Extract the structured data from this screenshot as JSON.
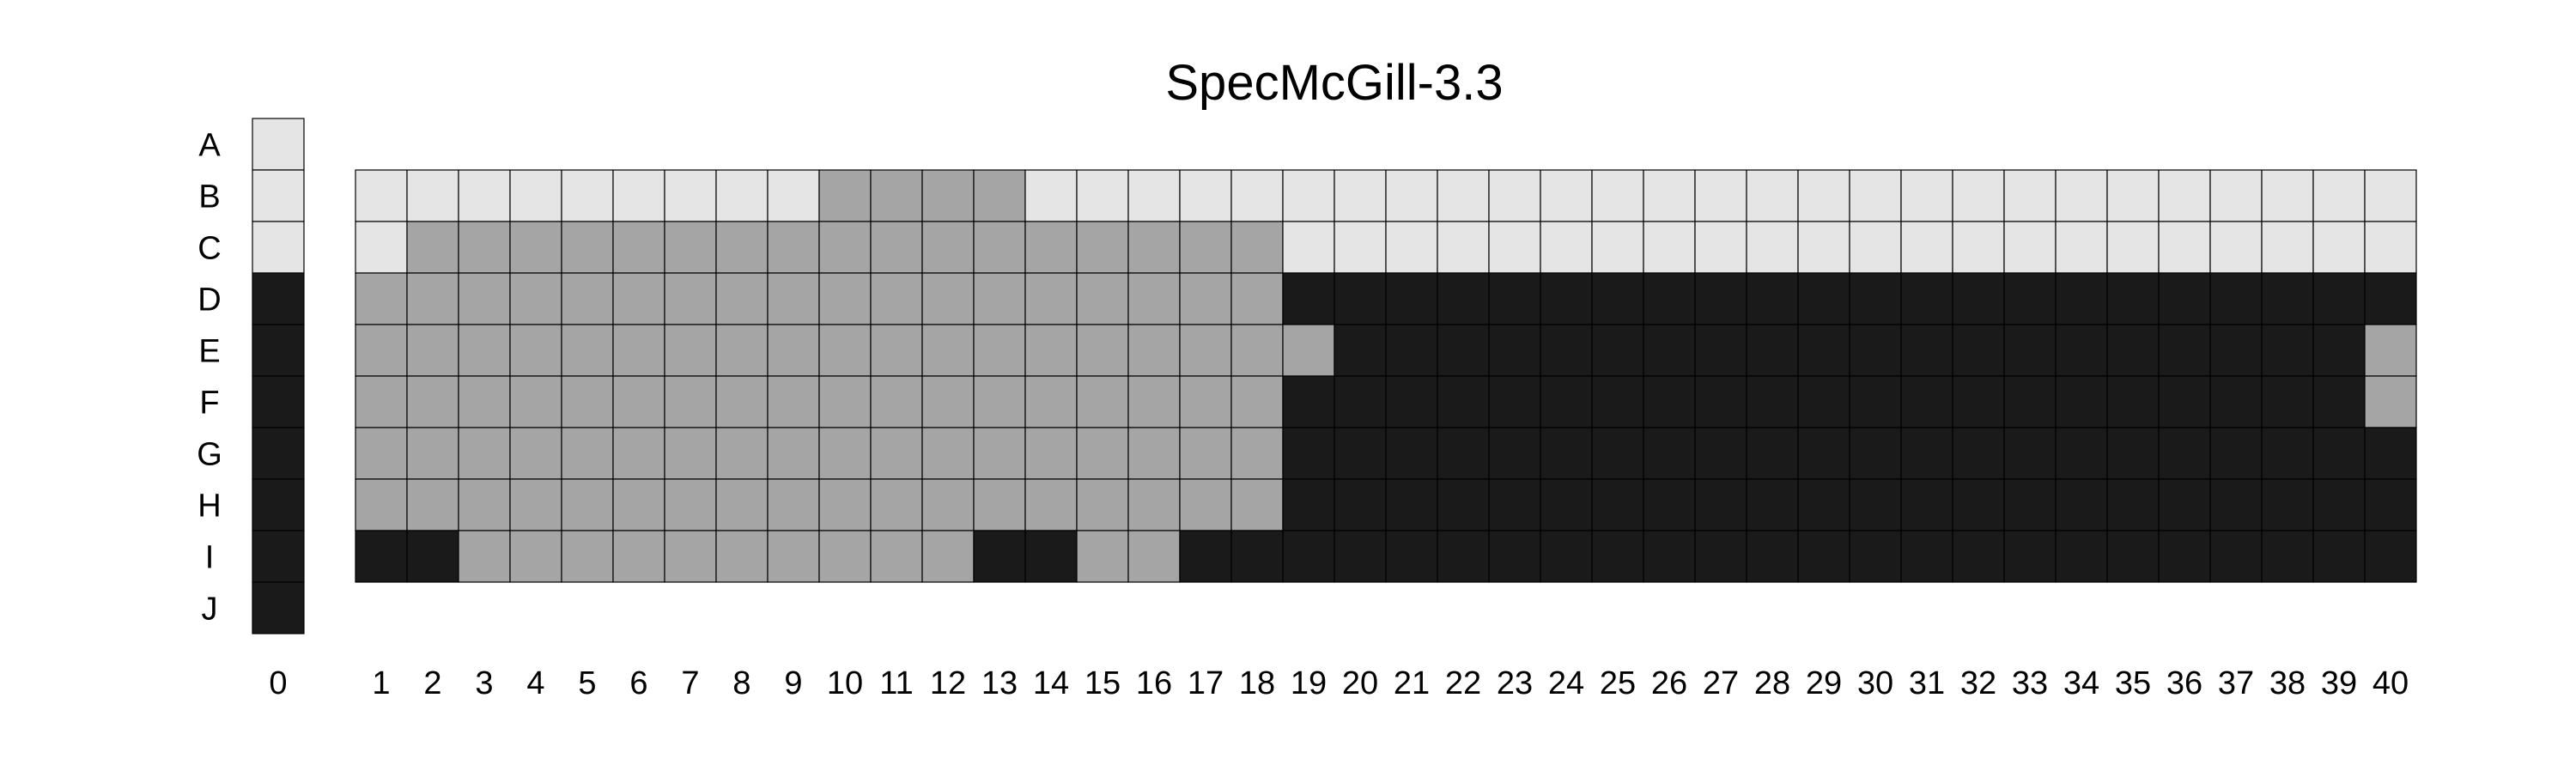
{
  "chart_data": {
    "type": "heatmap",
    "title": "SpecMcGill-3.3",
    "row_labels": [
      "A",
      "B",
      "C",
      "D",
      "E",
      "F",
      "G",
      "H",
      "I",
      "J"
    ],
    "column_zero_label": "0",
    "column_labels": [
      "1",
      "2",
      "3",
      "4",
      "5",
      "6",
      "7",
      "8",
      "9",
      "10",
      "11",
      "12",
      "13",
      "14",
      "15",
      "16",
      "17",
      "18",
      "19",
      "20",
      "21",
      "22",
      "23",
      "24",
      "25",
      "26",
      "27",
      "28",
      "29",
      "30",
      "31",
      "32",
      "33",
      "34",
      "35",
      "36",
      "37",
      "38",
      "39",
      "40"
    ],
    "level_colors": {
      "light": "#e5e5e5",
      "medium": "#a5a5a5",
      "dark": "#1a1a1a"
    },
    "column_zero_cells": [
      "light",
      "light",
      "light",
      "dark",
      "dark",
      "dark",
      "dark",
      "dark",
      "dark",
      "dark"
    ],
    "grid_row_labels": [
      "B",
      "C",
      "D",
      "E",
      "F",
      "G",
      "H",
      "I"
    ],
    "grid_cells": [
      [
        "light",
        "light",
        "light",
        "light",
        "light",
        "light",
        "light",
        "light",
        "light",
        "medium",
        "medium",
        "medium",
        "medium",
        "light",
        "light",
        "light",
        "light",
        "light",
        "light",
        "light",
        "light",
        "light",
        "light",
        "light",
        "light",
        "light",
        "light",
        "light",
        "light",
        "light",
        "light",
        "light",
        "light",
        "light",
        "light",
        "light",
        "light",
        "light",
        "light",
        "light"
      ],
      [
        "light",
        "medium",
        "medium",
        "medium",
        "medium",
        "medium",
        "medium",
        "medium",
        "medium",
        "medium",
        "medium",
        "medium",
        "medium",
        "medium",
        "medium",
        "medium",
        "medium",
        "medium",
        "light",
        "light",
        "light",
        "light",
        "light",
        "light",
        "light",
        "light",
        "light",
        "light",
        "light",
        "light",
        "light",
        "light",
        "light",
        "light",
        "light",
        "light",
        "light",
        "light",
        "light",
        "light"
      ],
      [
        "medium",
        "medium",
        "medium",
        "medium",
        "medium",
        "medium",
        "medium",
        "medium",
        "medium",
        "medium",
        "medium",
        "medium",
        "medium",
        "medium",
        "medium",
        "medium",
        "medium",
        "medium",
        "dark",
        "dark",
        "dark",
        "dark",
        "dark",
        "dark",
        "dark",
        "dark",
        "dark",
        "dark",
        "dark",
        "dark",
        "dark",
        "dark",
        "dark",
        "dark",
        "dark",
        "dark",
        "dark",
        "dark",
        "dark",
        "dark"
      ],
      [
        "medium",
        "medium",
        "medium",
        "medium",
        "medium",
        "medium",
        "medium",
        "medium",
        "medium",
        "medium",
        "medium",
        "medium",
        "medium",
        "medium",
        "medium",
        "medium",
        "medium",
        "medium",
        "medium",
        "dark",
        "dark",
        "dark",
        "dark",
        "dark",
        "dark",
        "dark",
        "dark",
        "dark",
        "dark",
        "dark",
        "dark",
        "dark",
        "dark",
        "dark",
        "dark",
        "dark",
        "dark",
        "dark",
        "dark",
        "medium"
      ],
      [
        "medium",
        "medium",
        "medium",
        "medium",
        "medium",
        "medium",
        "medium",
        "medium",
        "medium",
        "medium",
        "medium",
        "medium",
        "medium",
        "medium",
        "medium",
        "medium",
        "medium",
        "medium",
        "dark",
        "dark",
        "dark",
        "dark",
        "dark",
        "dark",
        "dark",
        "dark",
        "dark",
        "dark",
        "dark",
        "dark",
        "dark",
        "dark",
        "dark",
        "dark",
        "dark",
        "dark",
        "dark",
        "dark",
        "dark",
        "medium"
      ],
      [
        "medium",
        "medium",
        "medium",
        "medium",
        "medium",
        "medium",
        "medium",
        "medium",
        "medium",
        "medium",
        "medium",
        "medium",
        "medium",
        "medium",
        "medium",
        "medium",
        "medium",
        "medium",
        "dark",
        "dark",
        "dark",
        "dark",
        "dark",
        "dark",
        "dark",
        "dark",
        "dark",
        "dark",
        "dark",
        "dark",
        "dark",
        "dark",
        "dark",
        "dark",
        "dark",
        "dark",
        "dark",
        "dark",
        "dark",
        "dark"
      ],
      [
        "medium",
        "medium",
        "medium",
        "medium",
        "medium",
        "medium",
        "medium",
        "medium",
        "medium",
        "medium",
        "medium",
        "medium",
        "medium",
        "medium",
        "medium",
        "medium",
        "medium",
        "medium",
        "dark",
        "dark",
        "dark",
        "dark",
        "dark",
        "dark",
        "dark",
        "dark",
        "dark",
        "dark",
        "dark",
        "dark",
        "dark",
        "dark",
        "dark",
        "dark",
        "dark",
        "dark",
        "dark",
        "dark",
        "dark",
        "dark"
      ],
      [
        "dark",
        "dark",
        "medium",
        "medium",
        "medium",
        "medium",
        "medium",
        "medium",
        "medium",
        "medium",
        "medium",
        "medium",
        "dark",
        "dark",
        "medium",
        "medium",
        "dark",
        "dark",
        "dark",
        "dark",
        "dark",
        "dark",
        "dark",
        "dark",
        "dark",
        "dark",
        "dark",
        "dark",
        "dark",
        "dark",
        "dark",
        "dark",
        "dark",
        "dark",
        "dark",
        "dark",
        "dark",
        "dark",
        "dark",
        "dark"
      ]
    ]
  }
}
